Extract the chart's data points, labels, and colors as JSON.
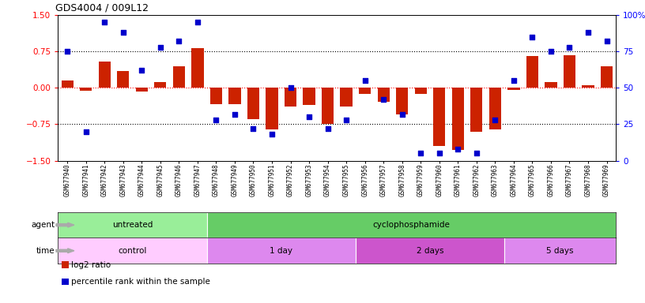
{
  "title": "GDS4004 / 009L12",
  "samples": [
    "GSM677940",
    "GSM677941",
    "GSM677942",
    "GSM677943",
    "GSM677944",
    "GSM677945",
    "GSM677946",
    "GSM677947",
    "GSM677948",
    "GSM677949",
    "GSM677950",
    "GSM677951",
    "GSM677952",
    "GSM677953",
    "GSM677954",
    "GSM677955",
    "GSM677956",
    "GSM677957",
    "GSM677958",
    "GSM677959",
    "GSM677960",
    "GSM677961",
    "GSM677962",
    "GSM677963",
    "GSM677964",
    "GSM677965",
    "GSM677966",
    "GSM677967",
    "GSM677968",
    "GSM677969"
  ],
  "log2_ratio": [
    0.15,
    -0.06,
    0.55,
    0.35,
    -0.08,
    0.12,
    0.45,
    0.82,
    -0.33,
    -0.33,
    -0.65,
    -0.85,
    -0.38,
    -0.35,
    -0.75,
    -0.38,
    -0.12,
    -0.28,
    -0.55,
    -0.12,
    -1.2,
    -1.28,
    -0.9,
    -0.85,
    -0.05,
    0.65,
    0.12,
    0.68,
    0.05,
    0.45
  ],
  "percentile": [
    75,
    20,
    95,
    88,
    62,
    78,
    82,
    95,
    28,
    32,
    22,
    18,
    50,
    30,
    22,
    28,
    55,
    42,
    32,
    5,
    5,
    8,
    5,
    28,
    55,
    85,
    75,
    78,
    88,
    82
  ],
  "bar_color": "#cc2200",
  "dot_color": "#0000cc",
  "dot_size": 18,
  "ylim_left": [
    -1.5,
    1.5
  ],
  "ylim_right": [
    0,
    100
  ],
  "yticks_left": [
    -1.5,
    -0.75,
    0,
    0.75,
    1.5
  ],
  "yticks_right": [
    0,
    25,
    50,
    75,
    100
  ],
  "hlines": [
    0.75,
    0,
    -0.75
  ],
  "hline_colors": [
    "black",
    "red",
    "black"
  ],
  "hline_styles": [
    "dotted",
    "dotted",
    "dotted"
  ],
  "agent_row": [
    {
      "label": "untreated",
      "start": 0,
      "end": 8,
      "color": "#99ee99"
    },
    {
      "label": "cyclophosphamide",
      "start": 8,
      "end": 30,
      "color": "#66cc66"
    }
  ],
  "time_row": [
    {
      "label": "control",
      "start": 0,
      "end": 8,
      "color": "#ffccff"
    },
    {
      "label": "1 day",
      "start": 8,
      "end": 16,
      "color": "#dd88ee"
    },
    {
      "label": "2 days",
      "start": 16,
      "end": 24,
      "color": "#cc55cc"
    },
    {
      "label": "5 days",
      "start": 24,
      "end": 30,
      "color": "#dd88ee"
    }
  ],
  "legend_items": [
    {
      "label": "log2 ratio",
      "color": "#cc2200"
    },
    {
      "label": "percentile rank within the sample",
      "color": "#0000cc"
    }
  ]
}
